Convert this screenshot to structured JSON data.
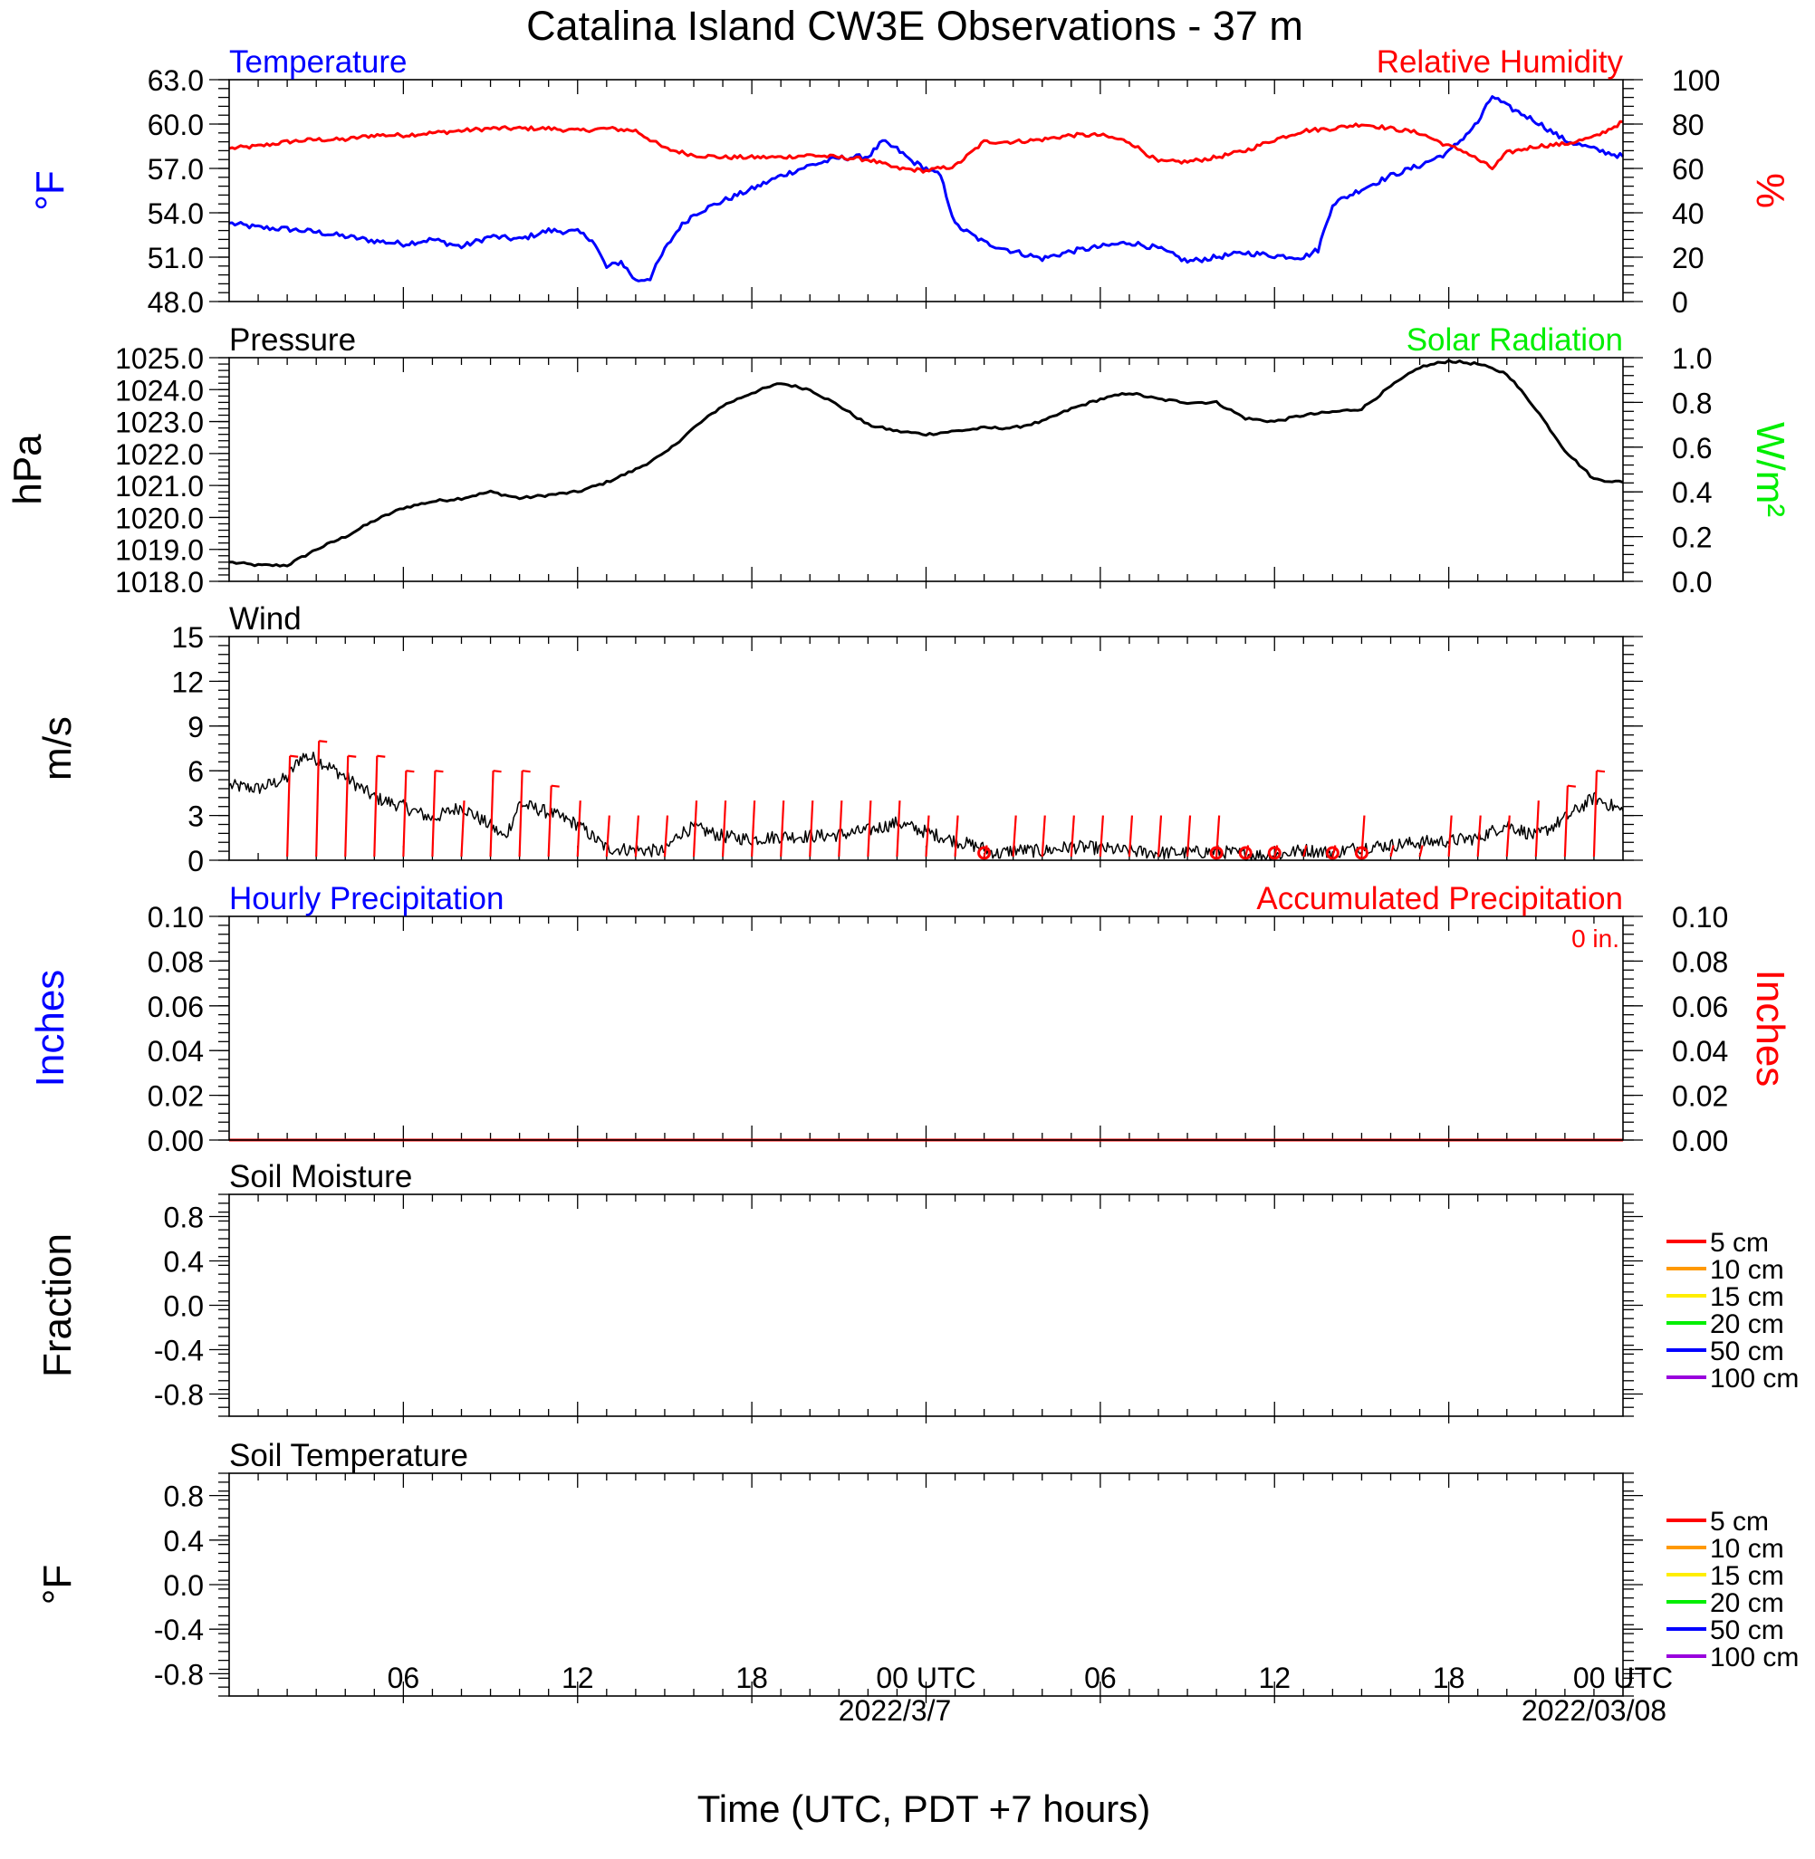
{
  "title": "Catalina Island CW3E Observations - 37 m",
  "time_axis": {
    "label": "Time (UTC, PDT +7 hours)",
    "tick_labels": [
      "06",
      "12",
      "18",
      "00 UTC",
      "06",
      "12",
      "18",
      "00 UTC"
    ],
    "dates": [
      "2022/3/7",
      "2022/03/08"
    ],
    "range_hours": [
      0,
      48
    ]
  },
  "colors": {
    "temperature": "#0000ff",
    "humidity": "#ff0000",
    "pressure": "#000000",
    "solar": "#00ee00",
    "wind": "#000000",
    "barb": "#ff0000",
    "hourly_precip": "#0000ff",
    "accum_precip": "#ff0000"
  },
  "chart_data": [
    {
      "type": "line",
      "left_title": "Temperature",
      "right_title": "Relative Humidity",
      "ylabel": "°F",
      "ylabel_right": "%",
      "ylim": [
        48,
        63
      ],
      "ylim_right": [
        0,
        100
      ],
      "yticks": [
        "63.0",
        "60.0",
        "57.0",
        "54.0",
        "51.0",
        "48.0"
      ],
      "yticks_right": [
        "100",
        "80",
        "60",
        "40",
        "20",
        "0"
      ],
      "series": [
        {
          "axis": "left",
          "x": [
            0,
            1,
            2,
            3,
            4,
            5,
            6,
            7,
            8,
            9,
            10,
            11,
            12,
            12.5,
            13,
            13.5,
            14,
            14.5,
            15,
            15.5,
            16,
            17,
            18,
            19,
            20,
            21,
            22,
            22.5,
            23,
            23.5,
            24,
            24.5,
            25,
            26,
            27,
            28,
            29,
            30,
            31,
            32,
            33,
            34,
            35,
            36,
            37,
            37.5,
            38,
            39,
            40,
            41,
            42,
            43,
            43.5,
            44,
            45,
            46,
            47,
            48
          ],
          "values": [
            53.3,
            53.0,
            52.9,
            52.7,
            52.4,
            52.1,
            51.9,
            52.2,
            51.7,
            52.4,
            52.2,
            52.8,
            52.7,
            52.2,
            50.3,
            50.7,
            49.4,
            49.6,
            51.5,
            53.0,
            53.9,
            54.8,
            55.6,
            56.5,
            57.2,
            57.7,
            57.8,
            58.8,
            58.3,
            57.5,
            57.0,
            56.5,
            53.2,
            52.0,
            51.4,
            50.9,
            51.4,
            51.7,
            52.0,
            51.6,
            50.7,
            51.0,
            51.3,
            51.1,
            51.0,
            51.5,
            54.6,
            55.6,
            56.5,
            57.2,
            58.1,
            60.1,
            61.9,
            61.2,
            60.2,
            58.9,
            58.3,
            57.8
          ]
        },
        {
          "axis": "right",
          "x": [
            0,
            1,
            2,
            3,
            4,
            5,
            6,
            7,
            8,
            9,
            10,
            11,
            12,
            13,
            14,
            15,
            16,
            17,
            18,
            19,
            20,
            21,
            22,
            23,
            24,
            25,
            26,
            27,
            28,
            29,
            30,
            31,
            32,
            33,
            34,
            35,
            36,
            37,
            38,
            39,
            40,
            41,
            42,
            42.5,
            43,
            43.5,
            44,
            45,
            46,
            47,
            48
          ],
          "values": [
            69,
            70,
            72,
            73,
            73,
            75,
            75,
            76,
            77,
            78,
            78,
            78,
            77,
            78,
            77,
            69,
            66,
            65,
            65,
            65,
            66,
            65,
            64,
            60,
            59,
            61,
            72,
            72,
            73,
            75,
            75,
            72,
            63,
            63,
            65,
            68,
            73,
            77,
            78,
            80,
            78,
            76,
            70,
            68,
            64,
            60,
            67,
            70,
            71,
            74,
            81
          ]
        }
      ]
    },
    {
      "type": "line",
      "left_title": "Pressure",
      "right_title": "Solar Radiation",
      "ylabel": "hPa",
      "ylabel_right": "W/m²",
      "ylim": [
        1018,
        1025
      ],
      "ylim_right": [
        0,
        1
      ],
      "yticks": [
        "1025.0",
        "1024.0",
        "1023.0",
        "1022.0",
        "1021.0",
        "1020.0",
        "1019.0",
        "1018.0"
      ],
      "yticks_right": [
        "1.0",
        "0.8",
        "0.6",
        "0.4",
        "0.2",
        "0.0"
      ],
      "series": [
        {
          "axis": "left",
          "x": [
            0,
            1,
            2,
            3,
            4,
            5,
            6,
            7,
            8,
            9,
            10,
            11,
            12,
            13,
            14,
            15,
            16,
            17,
            18,
            19,
            20,
            21,
            22,
            23,
            24,
            25,
            26,
            27,
            28,
            29,
            30,
            31,
            32,
            33,
            34,
            35,
            36,
            37,
            38,
            39,
            40,
            41,
            42,
            43,
            44,
            45,
            46,
            47,
            48
          ],
          "values": [
            1018.6,
            1018.5,
            1018.5,
            1019.0,
            1019.4,
            1019.9,
            1020.3,
            1020.5,
            1020.6,
            1020.8,
            1020.6,
            1020.7,
            1020.8,
            1021.1,
            1021.5,
            1022.0,
            1022.8,
            1023.5,
            1023.9,
            1024.2,
            1024.0,
            1023.5,
            1022.9,
            1022.7,
            1022.6,
            1022.7,
            1022.8,
            1022.8,
            1023.0,
            1023.4,
            1023.7,
            1023.9,
            1023.7,
            1023.6,
            1023.6,
            1023.1,
            1023.0,
            1023.2,
            1023.3,
            1023.4,
            1024.1,
            1024.7,
            1024.9,
            1024.8,
            1024.5,
            1023.4,
            1022.1,
            1021.2,
            1021.1
          ]
        }
      ]
    },
    {
      "type": "line",
      "left_title": "Wind",
      "ylabel": "m/s",
      "ylim": [
        0,
        15
      ],
      "yticks": [
        "15",
        "12",
        "9",
        "6",
        "3",
        "0"
      ],
      "series": [
        {
          "axis": "left",
          "x": [
            0,
            1,
            2,
            2.5,
            3,
            4,
            5,
            6,
            7,
            8,
            9,
            9.5,
            10,
            11,
            12,
            13,
            14,
            15,
            15.5,
            16,
            17,
            18,
            19,
            20,
            21,
            22,
            23,
            24,
            25,
            26,
            26.5,
            27,
            28,
            29,
            30,
            31,
            32,
            33,
            34,
            35,
            36,
            37,
            38,
            39,
            40,
            41,
            42,
            43,
            44,
            45,
            46,
            47,
            48
          ],
          "values": [
            5.0,
            4.8,
            5.5,
            7.0,
            6.8,
            5.6,
            4.2,
            3.6,
            2.8,
            3.6,
            2.3,
            1.5,
            3.8,
            3.2,
            2.4,
            0.8,
            0.7,
            0.6,
            1.8,
            2.2,
            1.6,
            1.4,
            1.6,
            1.6,
            1.7,
            2.0,
            2.5,
            1.9,
            1.3,
            0.8,
            0.4,
            0.7,
            0.6,
            0.9,
            0.8,
            0.6,
            0.5,
            0.5,
            0.6,
            0.4,
            0.3,
            0.7,
            0.5,
            0.9,
            1.0,
            1.2,
            1.3,
            1.5,
            2.4,
            1.6,
            2.8,
            4.2,
            3.3
          ]
        }
      ],
      "barb_hours": [
        2,
        3,
        4,
        5,
        6,
        7,
        8,
        9,
        10,
        11,
        12,
        13,
        14,
        15,
        16,
        17,
        18,
        19,
        20,
        21,
        22,
        23,
        24,
        25,
        26,
        27,
        28,
        29,
        30,
        31,
        32,
        33,
        34,
        35,
        36,
        37,
        38,
        39,
        40,
        41,
        42,
        43,
        44,
        45,
        46,
        47
      ],
      "barb_speeds": [
        7,
        8,
        7,
        7,
        6,
        6,
        4,
        6,
        6,
        5,
        4,
        3,
        3,
        3,
        4,
        4,
        4,
        4,
        4,
        4,
        4,
        4,
        3,
        3,
        1,
        3,
        3,
        3,
        3,
        3,
        3,
        3,
        3,
        1,
        1,
        1,
        1,
        3,
        1,
        1,
        3,
        3,
        3,
        4,
        5,
        6
      ],
      "calm_hours": [
        26,
        34,
        35,
        36,
        38,
        39
      ]
    },
    {
      "type": "line",
      "left_title": "Hourly Precipitation",
      "right_title": "Accumulated Precipitation",
      "annotation": "0 in.",
      "ylabel": "Inches",
      "ylabel_right": "Inches",
      "ylim": [
        0,
        0.1
      ],
      "ylim_right": [
        0,
        0.1
      ],
      "yticks": [
        "0.10",
        "0.08",
        "0.06",
        "0.04",
        "0.02",
        "0.00"
      ],
      "yticks_right": [
        "0.10",
        "0.08",
        "0.06",
        "0.04",
        "0.02",
        "0.00"
      ],
      "series": [
        {
          "axis": "left",
          "x": [
            0,
            48
          ],
          "values": [
            0,
            0
          ]
        },
        {
          "axis": "right",
          "x": [
            0,
            48
          ],
          "values": [
            0,
            0
          ]
        }
      ]
    },
    {
      "type": "line",
      "left_title": "Soil Moisture",
      "ylabel": "Fraction",
      "ylim": [
        -1,
        1
      ],
      "yticks": [
        "0.8",
        "0.4",
        "0.0",
        "-0.4",
        "-0.8"
      ],
      "legend": [
        {
          "label": "5 cm",
          "color": "#ff0000"
        },
        {
          "label": "10 cm",
          "color": "#ff9900"
        },
        {
          "label": "15 cm",
          "color": "#ffee00"
        },
        {
          "label": "20 cm",
          "color": "#00ee00"
        },
        {
          "label": "50 cm",
          "color": "#0000ff"
        },
        {
          "label": "100 cm",
          "color": "#9900dd"
        }
      ],
      "series": []
    },
    {
      "type": "line",
      "left_title": "Soil Temperature",
      "ylabel": "°F",
      "ylim": [
        -1,
        1
      ],
      "yticks": [
        "0.8",
        "0.4",
        "0.0",
        "-0.4",
        "-0.8"
      ],
      "legend": [
        {
          "label": "5 cm",
          "color": "#ff0000"
        },
        {
          "label": "10 cm",
          "color": "#ff9900"
        },
        {
          "label": "15 cm",
          "color": "#ffee00"
        },
        {
          "label": "20 cm",
          "color": "#00ee00"
        },
        {
          "label": "50 cm",
          "color": "#0000ff"
        },
        {
          "label": "100 cm",
          "color": "#9900dd"
        }
      ],
      "series": []
    }
  ]
}
